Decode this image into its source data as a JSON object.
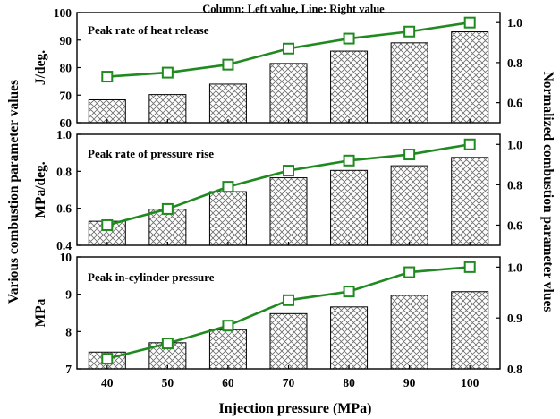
{
  "figure": {
    "top_note": "Column: Left value, Line: Right value",
    "left_axis_title": "Various combustion parameter values",
    "right_axis_title": "Normalized combustion parameter vlues",
    "x_axis_title": "Injection pressure (MPa)"
  },
  "colors": {
    "line": "#1f8a1f",
    "marker_fill": "#ffffff",
    "bar_fill": "#ffffff",
    "hatch": "#6b6b6b",
    "axis": "#000000"
  },
  "chart_data": [
    {
      "type": "bar+line",
      "title": "Peak rate of heat release",
      "categories": [
        "40",
        "50",
        "60",
        "70",
        "80",
        "90",
        "100"
      ],
      "ylabel": "J/deg.",
      "ylim": [
        60,
        100
      ],
      "yticks": [
        "60",
        "70",
        "80",
        "90",
        "100"
      ],
      "y2lim": [
        0.5,
        1.05
      ],
      "y2ticks": [
        "0.6",
        "0.8",
        "1.0"
      ],
      "bars": [
        68.3,
        70.2,
        74.0,
        81.5,
        86.0,
        89.0,
        93.0
      ],
      "line": [
        0.73,
        0.75,
        0.79,
        0.87,
        0.92,
        0.955,
        1.0
      ]
    },
    {
      "type": "bar+line",
      "title": "Peak rate of pressure rise",
      "categories": [
        "40",
        "50",
        "60",
        "70",
        "80",
        "90",
        "100"
      ],
      "ylabel": "MPa/deg.",
      "ylim": [
        0.4,
        1.0
      ],
      "yticks": [
        "0.4",
        "0.6",
        "0.8",
        "1.0"
      ],
      "y2lim": [
        0.5,
        1.05
      ],
      "y2ticks": [
        "0.6",
        "0.8",
        "1.0"
      ],
      "bars": [
        0.53,
        0.595,
        0.69,
        0.765,
        0.805,
        0.83,
        0.875
      ],
      "line": [
        0.6,
        0.68,
        0.79,
        0.87,
        0.92,
        0.95,
        1.0
      ]
    },
    {
      "type": "bar+line",
      "title": "Peak in-cylinder pressure",
      "categories": [
        "40",
        "50",
        "60",
        "70",
        "80",
        "90",
        "100"
      ],
      "ylabel": "MPa",
      "ylim": [
        7,
        10
      ],
      "yticks": [
        "7",
        "8",
        "9",
        "10"
      ],
      "y2lim": [
        0.8,
        1.02
      ],
      "y2ticks": [
        "0.8",
        "0.9",
        "1.0"
      ],
      "bars": [
        7.45,
        7.7,
        8.05,
        8.48,
        8.66,
        8.97,
        9.07
      ],
      "line": [
        0.82,
        0.85,
        0.885,
        0.935,
        0.952,
        0.99,
        1.0
      ]
    }
  ]
}
